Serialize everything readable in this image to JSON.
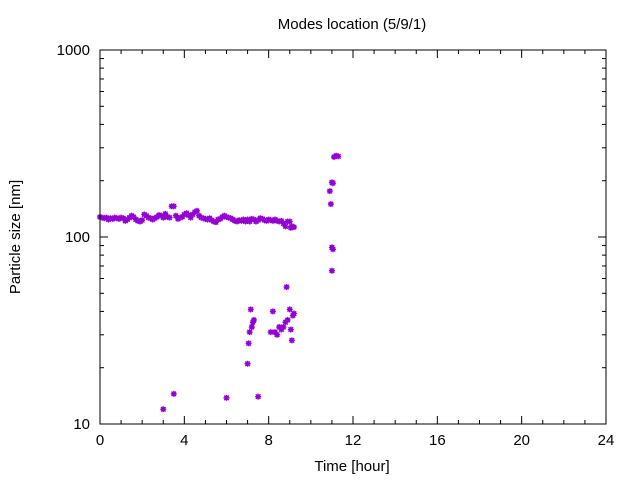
{
  "chart_data": {
    "type": "scatter",
    "title": "Modes location (5/9/1)",
    "xlabel": "Time [hour]",
    "ylabel": "Particle size [nm]",
    "xlim": [
      0,
      24
    ],
    "ylim": [
      10,
      1000
    ],
    "yscale": "log",
    "grid": false,
    "legend": "none",
    "x_ticks": [
      0,
      4,
      8,
      12,
      16,
      20,
      24
    ],
    "x_tick_labels": [
      "0",
      "4",
      "8",
      "12",
      "16",
      "20",
      "24"
    ],
    "y_ticks": [
      10,
      100,
      1000
    ],
    "y_tick_labels": [
      "10",
      "100",
      "1000"
    ],
    "marker_color": "#9400d3",
    "series": [
      {
        "name": "",
        "points": [
          [
            0.0,
            128
          ],
          [
            0.1,
            127
          ],
          [
            0.2,
            126
          ],
          [
            0.3,
            127
          ],
          [
            0.4,
            124
          ],
          [
            0.5,
            126
          ],
          [
            0.6,
            125
          ],
          [
            0.7,
            127
          ],
          [
            0.8,
            126
          ],
          [
            0.9,
            125
          ],
          [
            1.0,
            127
          ],
          [
            1.1,
            126
          ],
          [
            1.2,
            122
          ],
          [
            1.3,
            124
          ],
          [
            1.4,
            127
          ],
          [
            1.5,
            130
          ],
          [
            1.6,
            128
          ],
          [
            1.7,
            124
          ],
          [
            1.8,
            122
          ],
          [
            1.9,
            121
          ],
          [
            2.0,
            123
          ],
          [
            2.1,
            132
          ],
          [
            2.2,
            130
          ],
          [
            2.3,
            127
          ],
          [
            2.4,
            126
          ],
          [
            2.5,
            124
          ],
          [
            2.6,
            126
          ],
          [
            2.7,
            128
          ],
          [
            2.8,
            131
          ],
          [
            2.9,
            130
          ],
          [
            3.0,
            127
          ],
          [
            3.1,
            133
          ],
          [
            3.2,
            128
          ],
          [
            3.3,
            127
          ],
          [
            3.4,
            146
          ],
          [
            3.5,
            146
          ],
          [
            3.6,
            130
          ],
          [
            3.7,
            125
          ],
          [
            3.8,
            127
          ],
          [
            3.9,
            128
          ],
          [
            4.0,
            132
          ],
          [
            4.1,
            134
          ],
          [
            4.2,
            131
          ],
          [
            4.3,
            127
          ],
          [
            4.4,
            132
          ],
          [
            4.5,
            136
          ],
          [
            4.6,
            138
          ],
          [
            4.7,
            130
          ],
          [
            4.8,
            127
          ],
          [
            4.9,
            126
          ],
          [
            5.0,
            125
          ],
          [
            5.1,
            124
          ],
          [
            5.2,
            126
          ],
          [
            5.3,
            123
          ],
          [
            5.4,
            121
          ],
          [
            5.5,
            120
          ],
          [
            5.6,
            124
          ],
          [
            5.7,
            125
          ],
          [
            5.8,
            128
          ],
          [
            5.9,
            130
          ],
          [
            6.0,
            128
          ],
          [
            6.1,
            127
          ],
          [
            6.2,
            126
          ],
          [
            6.3,
            124
          ],
          [
            6.4,
            122
          ],
          [
            6.5,
            121
          ],
          [
            6.6,
            123
          ],
          [
            6.7,
            122
          ],
          [
            6.8,
            124
          ],
          [
            6.9,
            121
          ],
          [
            7.0,
            124
          ],
          [
            7.1,
            121
          ],
          [
            7.2,
            125
          ],
          [
            7.3,
            124
          ],
          [
            7.4,
            121
          ],
          [
            7.5,
            123
          ],
          [
            7.6,
            126
          ],
          [
            7.7,
            125
          ],
          [
            7.8,
            123
          ],
          [
            7.9,
            122
          ],
          [
            8.0,
            124
          ],
          [
            8.1,
            123
          ],
          [
            8.2,
            122
          ],
          [
            8.3,
            124
          ],
          [
            8.4,
            122
          ],
          [
            8.5,
            121
          ],
          [
            8.6,
            122
          ],
          [
            8.7,
            118
          ],
          [
            8.8,
            114
          ],
          [
            8.9,
            121
          ],
          [
            9.0,
            121
          ],
          [
            9.05,
            112
          ],
          [
            9.1,
            114
          ],
          [
            9.2,
            113
          ],
          [
            3.0,
            12
          ],
          [
            3.5,
            14.5
          ],
          [
            6.0,
            13.8
          ],
          [
            7.5,
            14
          ],
          [
            7.0,
            21
          ],
          [
            7.05,
            27
          ],
          [
            7.1,
            31
          ],
          [
            7.15,
            41
          ],
          [
            7.2,
            33
          ],
          [
            7.25,
            35
          ],
          [
            7.3,
            36
          ],
          [
            8.1,
            31
          ],
          [
            8.2,
            40
          ],
          [
            8.3,
            31
          ],
          [
            8.4,
            30
          ],
          [
            8.5,
            33
          ],
          [
            8.6,
            32
          ],
          [
            8.7,
            33
          ],
          [
            8.8,
            35
          ],
          [
            8.85,
            54
          ],
          [
            8.9,
            36
          ],
          [
            9.0,
            41
          ],
          [
            9.05,
            32
          ],
          [
            9.1,
            28
          ],
          [
            9.15,
            38
          ],
          [
            9.2,
            39
          ],
          [
            10.9,
            176
          ],
          [
            10.95,
            150
          ],
          [
            11.0,
            196
          ],
          [
            11.05,
            194
          ],
          [
            11.0,
            66
          ],
          [
            11.0,
            88
          ],
          [
            11.05,
            86
          ],
          [
            11.1,
            268
          ],
          [
            11.2,
            272
          ],
          [
            11.3,
            270
          ]
        ]
      }
    ]
  }
}
